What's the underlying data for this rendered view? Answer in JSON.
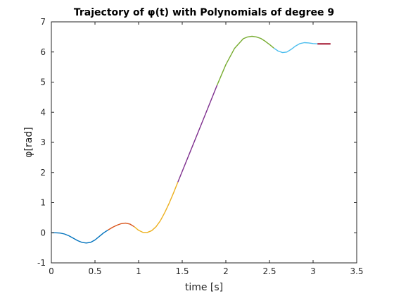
{
  "chart_data": {
    "type": "line",
    "title": "Trajectory of φ(t) with Polynomials of degree 9",
    "xlabel": "time [s]",
    "ylabel": "φ[rad]",
    "xlim": [
      0,
      3.5
    ],
    "ylim": [
      -1,
      7
    ],
    "xticks": [
      0,
      0.5,
      1,
      1.5,
      2,
      2.5,
      3,
      3.5
    ],
    "xtick_labels": [
      "0",
      "0.5",
      "1",
      "1.5",
      "2",
      "2.5",
      "3",
      "3.5"
    ],
    "yticks": [
      -1,
      0,
      1,
      2,
      3,
      4,
      5,
      6,
      7
    ],
    "ytick_labels": [
      "-1",
      "0",
      "1",
      "2",
      "3",
      "4",
      "5",
      "6",
      "7"
    ],
    "grid": false,
    "legend": "none",
    "series": [
      {
        "color": "#0072BD",
        "x": [
          0,
          0.05,
          0.1,
          0.15,
          0.2,
          0.25,
          0.3,
          0.35,
          0.4,
          0.45,
          0.5,
          0.55,
          0.6,
          0.65
        ],
        "y": [
          0,
          0.0,
          -0.01,
          -0.04,
          -0.1,
          -0.18,
          -0.26,
          -0.32,
          -0.34,
          -0.32,
          -0.24,
          -0.12,
          0.0,
          0.09
        ]
      },
      {
        "color": "#D95319",
        "x": [
          0.65,
          0.7,
          0.75,
          0.8,
          0.85,
          0.9,
          0.95
        ],
        "y": [
          0.09,
          0.18,
          0.25,
          0.3,
          0.32,
          0.29,
          0.2
        ]
      },
      {
        "color": "#EDB120",
        "x": [
          0.95,
          1.0,
          1.05,
          1.1,
          1.15,
          1.2,
          1.25,
          1.3,
          1.35,
          1.4,
          1.45
        ],
        "y": [
          0.2,
          0.08,
          0.01,
          0.01,
          0.07,
          0.2,
          0.4,
          0.67,
          0.98,
          1.32,
          1.68
        ]
      },
      {
        "color": "#7E2F8E",
        "x": [
          1.45,
          1.6,
          1.75,
          1.9
        ],
        "y": [
          1.68,
          2.75,
          3.82,
          4.9
        ]
      },
      {
        "color": "#77AC30",
        "x": [
          1.9,
          2.0,
          2.1,
          2.2,
          2.25,
          2.3,
          2.35,
          2.4,
          2.45,
          2.5,
          2.55
        ],
        "y": [
          4.9,
          5.58,
          6.12,
          6.44,
          6.5,
          6.52,
          6.5,
          6.45,
          6.36,
          6.25,
          6.13
        ]
      },
      {
        "color": "#4DBEEE",
        "x": [
          2.55,
          2.6,
          2.65,
          2.7,
          2.75,
          2.8,
          2.85,
          2.9,
          2.95,
          3.0,
          3.05
        ],
        "y": [
          6.13,
          6.03,
          5.98,
          6.0,
          6.09,
          6.2,
          6.28,
          6.31,
          6.3,
          6.28,
          6.27
        ]
      },
      {
        "color": "#A2142F",
        "x": [
          3.05,
          3.1,
          3.15,
          3.2
        ],
        "y": [
          6.27,
          6.27,
          6.27,
          6.27
        ]
      }
    ]
  }
}
